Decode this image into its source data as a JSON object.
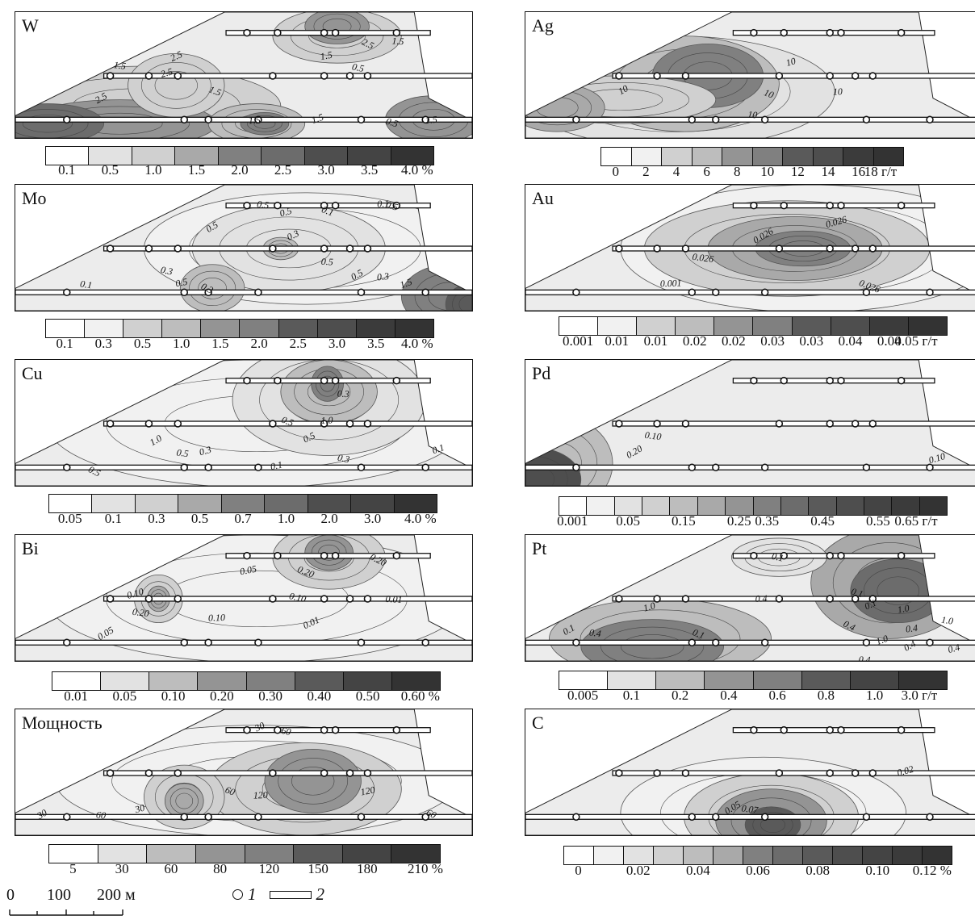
{
  "panels": [
    {
      "id": "W",
      "title": "W",
      "unit": "%",
      "labels": [
        "0.1",
        "0.5",
        "1.0",
        "1.5",
        "2.0",
        "2.5",
        "3.0",
        "3.5",
        "4.0 %"
      ],
      "swatches": 9,
      "isolines": [
        "2.5",
        "1.5",
        "2.5",
        "1.5",
        "1.5",
        "2.5",
        "0.5",
        "1.5",
        "2.5",
        "1.5",
        "1.5",
        "0.5",
        "1.5"
      ]
    },
    {
      "id": "Mo",
      "title": "Mo",
      "unit": "%",
      "labels": [
        "0.1",
        "0.3",
        "0.5",
        "1.0",
        "1.5",
        "2.0",
        "2.5",
        "3.0",
        "3.5",
        "4.0 %"
      ],
      "swatches": 10,
      "isolines": [
        "0.5",
        "0.5",
        "0.5",
        "0.1",
        "0.1",
        "0.3",
        "0.3",
        "0.5",
        "0.3",
        "0.5",
        "1.5",
        "0.5",
        "0.3",
        "0.5",
        "0.1"
      ]
    },
    {
      "id": "Cu",
      "title": "Cu",
      "unit": "%",
      "labels": [
        "0.05",
        "0.1",
        "0.3",
        "0.5",
        "0.7",
        "1.0",
        "2.0",
        "3.0",
        "4.0 %"
      ],
      "swatches": 9,
      "isolines": [
        "1.0",
        "0.5",
        "0.3",
        "0.5",
        "1.0",
        "0.5",
        "0.3",
        "0.1",
        "0.5",
        "0.3",
        "0.1"
      ]
    },
    {
      "id": "Bi",
      "title": "Bi",
      "unit": "%",
      "labels": [
        "0.01",
        "0.05",
        "0.10",
        "0.20",
        "0.30",
        "0.40",
        "0.50",
        "0.60 %"
      ],
      "swatches": 8,
      "isolines": [
        "0.05",
        "0.20",
        "0.10",
        "0.20",
        "0.10",
        "0.01",
        "0.10",
        "0.05",
        "0.20",
        "0.01"
      ]
    },
    {
      "id": "M",
      "title": "Мощность",
      "unit": "%",
      "labels": [
        "5",
        "30",
        "60",
        "80",
        "120",
        "150",
        "180",
        "210 %"
      ],
      "swatches": 8,
      "isolines": [
        "30",
        "60",
        "30",
        "60",
        "120",
        "30",
        "60",
        "120",
        "60"
      ]
    },
    {
      "id": "Ag",
      "title": "Ag",
      "unit": "г/т",
      "labels": [
        "0",
        "2",
        "4",
        "6",
        "8",
        "10",
        "12",
        "14",
        "16",
        "18 г/т"
      ],
      "swatches": 10,
      "isolines": [
        "10",
        "10",
        "10",
        "10",
        "10"
      ]
    },
    {
      "id": "Au",
      "title": "Au",
      "unit": "г/т",
      "labels": [
        "0.001",
        "0.01",
        "0.01",
        "0.02",
        "0.02",
        "0.03",
        "0.03",
        "0.04",
        "0.04",
        "0.05 г/т"
      ],
      "swatches": 10,
      "isolines": [
        "0.026",
        "0.026",
        "0.026",
        "0.026",
        "0.001"
      ]
    },
    {
      "id": "Pd",
      "title": "Pd",
      "unit": "г/т",
      "labels": [
        "0.001",
        "0.05",
        "0.15",
        "0.25",
        "0.35",
        "0.45",
        "0.55",
        "0.65 г/т"
      ],
      "swatches": 14,
      "isolines": [
        "0.20",
        "0.10",
        "0.10"
      ]
    },
    {
      "id": "Pt",
      "title": "Pt",
      "unit": "г/т",
      "labels": [
        "0.005",
        "0.1",
        "0.2",
        "0.4",
        "0.6",
        "0.8",
        "1.0",
        "3.0 г/т"
      ],
      "swatches": 8,
      "isolines": [
        "0.1",
        "0.4",
        "1.0",
        "0.1",
        "0.4",
        "0.1",
        "0.1",
        "1.0",
        "0.4",
        "0.4",
        "1.0",
        "0.1",
        "0.4",
        "0.4",
        "1.0",
        "0.4"
      ]
    },
    {
      "id": "C",
      "title": "C",
      "unit": "%",
      "labels": [
        "0",
        "0.02",
        "0.04",
        "0.06",
        "0.08",
        "0.10",
        "0.12 %"
      ],
      "swatches": 13,
      "isolines": [
        "0.05",
        "0.07",
        "0.02"
      ]
    }
  ],
  "scale": {
    "labels": [
      "0",
      "100",
      "200 м"
    ]
  },
  "footer": {
    "item1": "1",
    "item2": "2"
  }
}
